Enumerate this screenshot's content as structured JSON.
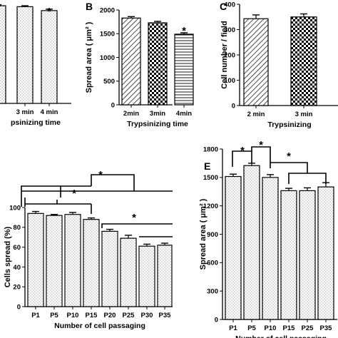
{
  "chart_data": [
    {
      "id": "A",
      "panel_label": "",
      "type": "bar",
      "categories": [
        "",
        "3 min",
        "4 min"
      ],
      "values": [
        100,
        99,
        95
      ],
      "errors": [
        1,
        1,
        1.5
      ],
      "ylim": [
        0,
        100
      ],
      "yticks": [],
      "xlabel": "psinizing time",
      "ylabel": "",
      "patterns": [
        "dots",
        "dots",
        "dots"
      ],
      "annotations": [
        {
          "text": "*",
          "bar": 2
        }
      ]
    },
    {
      "id": "B",
      "panel_label": "B",
      "type": "bar",
      "categories": [
        "2min",
        "3min",
        "4min"
      ],
      "values": [
        1830,
        1730,
        1490
      ],
      "errors": [
        30,
        30,
        30
      ],
      "ylim": [
        0,
        2000
      ],
      "yticks": [
        "0",
        "500",
        "1000",
        "1500",
        "2000"
      ],
      "xlabel": "Trypsinizing time",
      "ylabel": "Spread area ( μm² )",
      "patterns": [
        "hatch",
        "checker",
        "hlines"
      ],
      "annotations": [
        {
          "text": "*",
          "bar": 2
        }
      ]
    },
    {
      "id": "C",
      "panel_label": "C",
      "type": "bar",
      "categories": [
        "2 min",
        "3 min"
      ],
      "values": [
        343,
        350
      ],
      "errors": [
        15,
        12
      ],
      "ylim": [
        0,
        400
      ],
      "yticks": [
        "0",
        "100",
        "200",
        "300",
        "400"
      ],
      "xlabel": "Trypsinizing",
      "ylabel": "Cell number / field",
      "patterns": [
        "hatch",
        "checker"
      ],
      "annotations": []
    },
    {
      "id": "D",
      "panel_label": "",
      "type": "bar",
      "categories": [
        "P1",
        "P5",
        "P10",
        "P15",
        "P20",
        "P25",
        "P30",
        "P35"
      ],
      "values": [
        94,
        92,
        93,
        88,
        76,
        69,
        61,
        62
      ],
      "errors": [
        2,
        1,
        2,
        1.5,
        2,
        3,
        2,
        2
      ],
      "ylim": [
        0,
        100
      ],
      "yticks": [
        "0",
        "20",
        "40",
        "60",
        "80",
        "100"
      ],
      "xlabel": "Number of cell passaging",
      "ylabel": "Cells spread (%)",
      "patterns": [
        "dots",
        "dots",
        "dots",
        "dots",
        "dots",
        "dots",
        "dots",
        "dots"
      ],
      "annotations": [
        "*",
        "*",
        "*"
      ]
    },
    {
      "id": "E",
      "panel_label": "E",
      "type": "bar",
      "categories": [
        "P1",
        "P5",
        "P10",
        "P15",
        "P25",
        "P35"
      ],
      "values": [
        1510,
        1625,
        1500,
        1360,
        1360,
        1400
      ],
      "errors": [
        25,
        25,
        30,
        25,
        30,
        45
      ],
      "ylim": [
        0,
        1800
      ],
      "yticks": [
        "0",
        "300",
        "600",
        "900",
        "1200",
        "1500",
        "1800"
      ],
      "xlabel": "Number of cell passaging",
      "ylabel": "Spread area ( μm² )",
      "patterns": [
        "dots",
        "dots",
        "dots",
        "dots",
        "dots",
        "dots"
      ],
      "annotations": [
        "*",
        "*",
        "*"
      ]
    }
  ]
}
